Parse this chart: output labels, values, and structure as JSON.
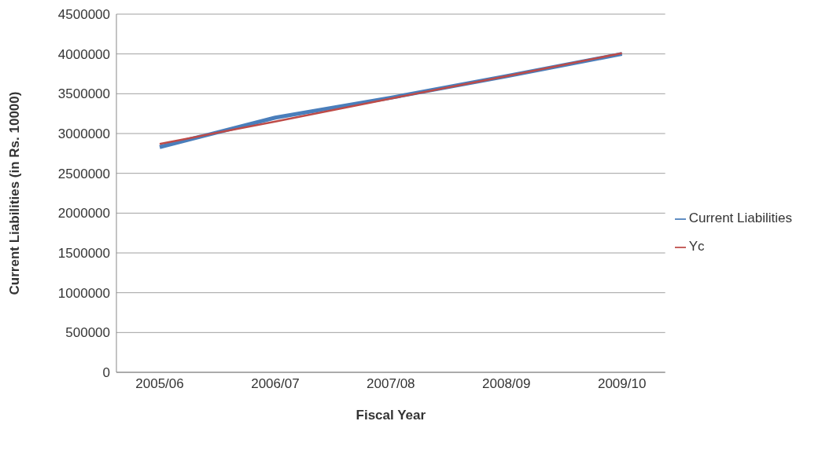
{
  "chart_data": {
    "type": "line",
    "xlabel": "Fiscal Year",
    "ylabel": "Current Liabilities (in Rs. 10000)",
    "categories": [
      "2005/06",
      "2006/07",
      "2007/08",
      "2008/09",
      "2009/10"
    ],
    "series": [
      {
        "name": "Current Liabilities",
        "color": "#4a7ebb",
        "values": [
          2830000,
          3200000,
          3450000,
          3720000,
          4000000
        ]
      },
      {
        "name": "Yc",
        "color": "#be4b48",
        "values": [
          2870000,
          3150000,
          3440000,
          3720000,
          4010000
        ]
      }
    ],
    "ylim": [
      0,
      4500000
    ],
    "yticks": [
      0,
      500000,
      1000000,
      1500000,
      2000000,
      2500000,
      3000000,
      3500000,
      4000000,
      4500000
    ],
    "grid": "y",
    "legend": "right",
    "marker": "none",
    "line_style": "solid"
  }
}
